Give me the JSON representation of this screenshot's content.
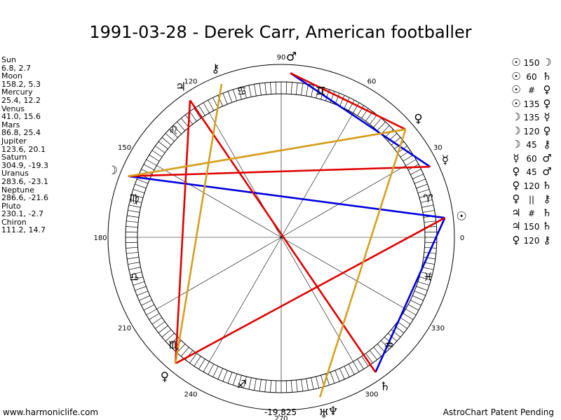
{
  "title": "1991-03-28 - Derek Carr, American footballer",
  "planets": [
    {
      "name": "Sun",
      "coords": "6.8, 2.7",
      "lon": 6.8,
      "glyph": "☉"
    },
    {
      "name": "Moon",
      "coords": "158.2, 5.3",
      "lon": 158.2,
      "glyph": "☽"
    },
    {
      "name": "Mercury",
      "coords": "25.4, 12.2",
      "lon": 25.4,
      "glyph": "☿"
    },
    {
      "name": "Venus",
      "coords": "41.0, 15.6",
      "lon": 41.0,
      "glyph": "♀"
    },
    {
      "name": "Mars",
      "coords": "86.8, 25.4",
      "lon": 86.8,
      "glyph": "♂"
    },
    {
      "name": "Jupiter",
      "coords": "123.6, 20.1",
      "lon": 123.6,
      "glyph": "♃"
    },
    {
      "name": "Saturn",
      "coords": "304.9, -19.3",
      "lon": 304.9,
      "glyph": "♄"
    },
    {
      "name": "Uranus",
      "coords": "283.6, -23.1",
      "lon": 283.6,
      "glyph": "♅"
    },
    {
      "name": "Neptune",
      "coords": "286.6, -21.6",
      "lon": 286.6,
      "glyph": "♆"
    },
    {
      "name": "Pluto",
      "coords": "230.1, -2.7",
      "lon": 230.1,
      "glyph": "♀"
    },
    {
      "name": "Chiron",
      "coords": "111.2, 14.7",
      "lon": 111.2,
      "glyph": "⚷"
    }
  ],
  "aspects": [
    {
      "p1": "☉",
      "angle": "150",
      "p2": "☽"
    },
    {
      "p1": "☉",
      "angle": "60",
      "p2": "♄"
    },
    {
      "p1": "☉",
      "angle": "#",
      "p2": "♀"
    },
    {
      "p1": "☉",
      "angle": "135",
      "p2": "♀"
    },
    {
      "p1": "☽",
      "angle": "135",
      "p2": "☿"
    },
    {
      "p1": "☽",
      "angle": "120",
      "p2": "♀"
    },
    {
      "p1": "☽",
      "angle": "45",
      "p2": "⚷"
    },
    {
      "p1": "☿",
      "angle": "60",
      "p2": "♂"
    },
    {
      "p1": "♀",
      "angle": "45",
      "p2": "♂"
    },
    {
      "p1": "♀",
      "angle": "120",
      "p2": "♄"
    },
    {
      "p1": "♀",
      "angle": "||",
      "p2": "⚷"
    },
    {
      "p1": "♃",
      "angle": "#",
      "p2": "♄"
    },
    {
      "p1": "♃",
      "angle": "150",
      "p2": "♄"
    },
    {
      "p1": "♀",
      "angle": "120",
      "p2": "⚷"
    }
  ],
  "degree_labels": [
    "0",
    "30",
    "60",
    "90",
    "120",
    "150",
    "180",
    "210",
    "240",
    "270",
    "300",
    "330"
  ],
  "signs": [
    {
      "lon": 15,
      "glyph": "♈"
    },
    {
      "lon": 75,
      "glyph": "♊"
    },
    {
      "lon": 135,
      "glyph": "♌"
    },
    {
      "lon": 165,
      "glyph": "♍"
    },
    {
      "lon": 225,
      "glyph": "♏"
    },
    {
      "lon": 255,
      "glyph": "♐"
    },
    {
      "lon": 315,
      "glyph": "♒"
    },
    {
      "lon": 345,
      "glyph": "♓"
    },
    {
      "lon": 105,
      "glyph": "♋"
    },
    {
      "lon": 195,
      "glyph": "♎"
    }
  ],
  "lines": [
    {
      "a": 6.8,
      "b": 158.2,
      "color": "#0000dd"
    },
    {
      "a": 6.8,
      "b": 304.9,
      "color": "#0000dd"
    },
    {
      "a": 25.4,
      "b": 86.8,
      "color": "#0000dd"
    },
    {
      "a": 41.0,
      "b": 86.8,
      "color": "#e00000"
    },
    {
      "a": 6.8,
      "b": 230.1,
      "color": "#e00000"
    },
    {
      "a": 25.4,
      "b": 158.2,
      "color": "#e00000"
    },
    {
      "a": 123.6,
      "b": 230.1,
      "color": "#e00000"
    },
    {
      "a": 123.6,
      "b": 304.9,
      "color": "#e00000"
    },
    {
      "a": 158.2,
      "b": 41.0,
      "color": "#d4a020"
    },
    {
      "a": 158.2,
      "b": 41.0,
      "color": "#d4a020"
    },
    {
      "a": 111.2,
      "b": 230.1,
      "color": "#d4a020"
    },
    {
      "a": 41.0,
      "b": 283.6,
      "color": "#d4a020"
    }
  ],
  "footer_left": "www.harmoniclife.com",
  "footer_center": "-19,825",
  "footer_right": "AstroChart Patent Pending"
}
